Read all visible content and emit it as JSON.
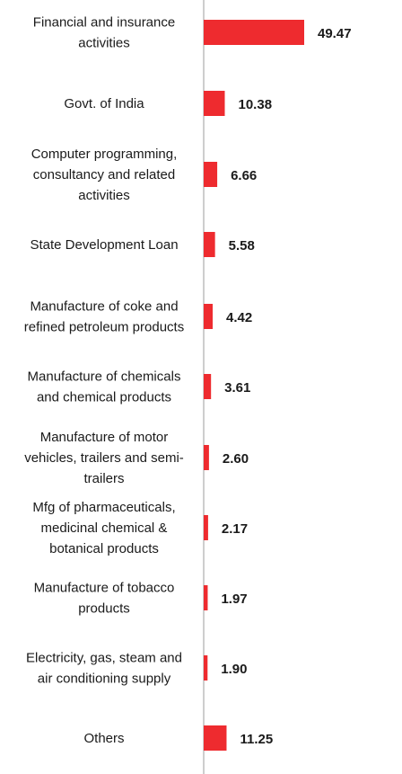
{
  "chart_data": {
    "type": "bar",
    "orientation": "horizontal",
    "title": "",
    "xlabel": "",
    "ylabel": "",
    "grid": false,
    "legend": "none",
    "categories": [
      [
        "Financial and insurance",
        "activities"
      ],
      [
        "Govt. of India"
      ],
      [
        "Computer programming,",
        "consultancy and related",
        "activities"
      ],
      [
        "State Development Loan"
      ],
      [
        "Manufacture of coke and",
        "refined petroleum products"
      ],
      [
        "Manufacture of chemicals",
        "and chemical products"
      ],
      [
        "Manufacture of motor",
        "vehicles, trailers and semi-",
        "trailers"
      ],
      [
        "Mfg of pharmaceuticals,",
        "medicinal chemical &",
        "botanical products"
      ],
      [
        "Manufacture of tobacco",
        "products"
      ],
      [
        "Electricity, gas, steam and",
        "air conditioning supply"
      ],
      [
        "Others"
      ]
    ],
    "values": [
      49.47,
      10.38,
      6.66,
      5.58,
      4.42,
      3.61,
      2.6,
      2.17,
      1.97,
      1.9,
      11.25
    ],
    "value_labels": [
      "49.47",
      "10.38",
      "6.66",
      "5.58",
      "4.42",
      "3.61",
      "2.60",
      "2.17",
      "1.97",
      "1.90",
      "11.25"
    ],
    "xlim": [
      0,
      49.47
    ],
    "colors": {
      "bar": "#ee2b2f",
      "axis": "#9e9e9e",
      "text": "#1a1a1a"
    }
  }
}
